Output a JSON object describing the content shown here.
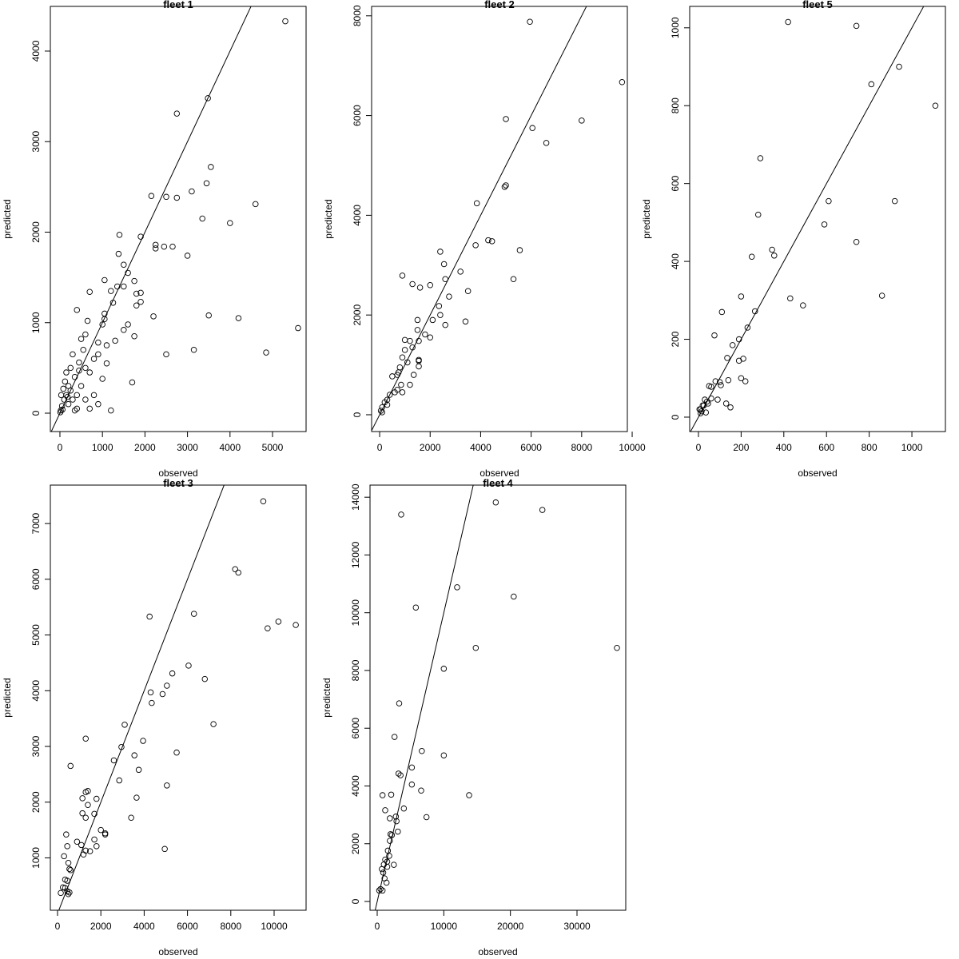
{
  "chart_data": [
    {
      "type": "scatter",
      "title": "fleet 1",
      "x_label": "observed",
      "y_label": "predicted",
      "identity_line": true,
      "color": "#000000",
      "x": [
        5300,
        2750,
        3480,
        3550,
        3450,
        3100,
        2500,
        2750,
        2150,
        3350,
        4600,
        4000,
        2250,
        2450,
        2650,
        2250,
        3000,
        1900,
        1400,
        1380,
        1500,
        1600,
        1350,
        1500,
        1750,
        1800,
        1900,
        1200,
        1050,
        700,
        400,
        1800,
        1900,
        2200,
        3500,
        4200,
        5600,
        4850,
        3150,
        2500,
        1700,
        1200,
        1050,
        1000,
        1300,
        1500,
        1600,
        1750,
        1100,
        900,
        800,
        600,
        650,
        500,
        300,
        450,
        600,
        700,
        800,
        900,
        700,
        1000,
        1100,
        350,
        200,
        150,
        100,
        50,
        20,
        250,
        300,
        400,
        500,
        150,
        80,
        250,
        200,
        600,
        400,
        120,
        350,
        30,
        10,
        60,
        180,
        900,
        1050,
        1250,
        550,
        450
      ],
      "y": [
        4330,
        3310,
        3480,
        2720,
        2540,
        2450,
        2390,
        2380,
        2400,
        2150,
        2310,
        2100,
        1860,
        1840,
        1840,
        1820,
        1740,
        1950,
        1970,
        1760,
        1640,
        1550,
        1400,
        1400,
        1460,
        1320,
        1330,
        1350,
        1470,
        1340,
        1140,
        1190,
        1230,
        1070,
        1080,
        1050,
        940,
        670,
        700,
        650,
        340,
        30,
        1100,
        980,
        800,
        920,
        980,
        850,
        750,
        650,
        600,
        870,
        1020,
        820,
        650,
        560,
        500,
        450,
        200,
        100,
        50,
        380,
        550,
        400,
        300,
        200,
        150,
        80,
        30,
        250,
        150,
        200,
        300,
        450,
        270,
        500,
        100,
        150,
        50,
        350,
        30,
        200,
        10,
        40,
        180,
        780,
        1040,
        1220,
        700,
        470
      ],
      "xlim": [
        -225,
        5789
      ],
      "ylim": [
        -203,
        4494
      ],
      "xticks": [
        0,
        1000,
        2000,
        3000,
        4000,
        5000
      ],
      "yticks": [
        0,
        1000,
        2000,
        3000,
        4000
      ]
    },
    {
      "type": "scatter",
      "title": "fleet 2",
      "x_label": "observed",
      "y_label": "predicted",
      "identity_line": true,
      "color": "#000000",
      "x": [
        5950,
        9600,
        5000,
        6050,
        8000,
        6600,
        4950,
        5000,
        3850,
        4300,
        4450,
        3800,
        5550,
        2400,
        2550,
        5300,
        2600,
        3500,
        3400,
        3200,
        2750,
        2350,
        2400,
        2000,
        1600,
        900,
        1300,
        2100,
        2600,
        2000,
        1800,
        1500,
        1550,
        1300,
        1000,
        1200,
        1500,
        1350,
        900,
        1100,
        1000,
        800,
        700,
        850,
        500,
        600,
        400,
        300,
        200,
        100,
        50,
        100,
        300,
        700,
        900,
        1550,
        1550,
        1550,
        1200,
        750
      ],
      "y": [
        7880,
        6670,
        5930,
        5750,
        5900,
        5450,
        4570,
        4600,
        4240,
        3500,
        3480,
        3400,
        3300,
        3270,
        3020,
        2720,
        2720,
        2480,
        1870,
        2870,
        2370,
        2180,
        2000,
        2600,
        2550,
        2790,
        2620,
        1900,
        1800,
        1550,
        1610,
        1700,
        1480,
        1350,
        1500,
        1480,
        1900,
        800,
        1150,
        1050,
        1300,
        950,
        800,
        600,
        770,
        450,
        400,
        300,
        250,
        150,
        80,
        50,
        200,
        500,
        450,
        1100,
        1080,
        970,
        600,
        850
      ],
      "xlim": [
        -318,
        9809
      ],
      "ylim": [
        -337,
        8189
      ],
      "xticks": [
        0,
        2000,
        4000,
        6000,
        8000,
        10000
      ],
      "yticks": [
        0,
        2000,
        4000,
        6000,
        8000
      ]
    },
    {
      "type": "scatter",
      "title": "fleet 5",
      "x_label": "observed",
      "y_label": "predicted",
      "identity_line": true,
      "color": "#000000",
      "x": [
        420,
        740,
        940,
        810,
        1110,
        290,
        610,
        920,
        280,
        590,
        740,
        345,
        355,
        250,
        200,
        860,
        430,
        490,
        265,
        110,
        230,
        75,
        160,
        190,
        210,
        190,
        135,
        200,
        220,
        140,
        100,
        80,
        105,
        50,
        60,
        90,
        130,
        150,
        40,
        30,
        20,
        10,
        15,
        25,
        45,
        35,
        60,
        5,
        10
      ],
      "y": [
        1015,
        1005,
        900,
        855,
        800,
        665,
        555,
        555,
        520,
        495,
        450,
        430,
        415,
        412,
        310,
        312,
        305,
        287,
        272,
        270,
        230,
        210,
        185,
        200,
        150,
        145,
        152,
        100,
        92,
        95,
        90,
        92,
        82,
        80,
        78,
        45,
        35,
        25,
        40,
        45,
        30,
        20,
        15,
        30,
        35,
        12,
        48,
        20,
        10
      ],
      "xlim": [
        -41,
        1157
      ],
      "ylim": [
        -37,
        1055
      ],
      "xticks": [
        0,
        200,
        400,
        600,
        800,
        1000
      ],
      "yticks": [
        0,
        200,
        400,
        600,
        800,
        1000
      ]
    },
    {
      "type": "scatter",
      "title": "fleet 3",
      "x_label": "observed",
      "y_label": "predicted",
      "identity_line": true,
      "color": "#000000",
      "x": [
        9500,
        8200,
        8350,
        10200,
        9700,
        11000,
        4250,
        6300,
        6050,
        6800,
        5300,
        5050,
        4850,
        4300,
        4350,
        7200,
        3100,
        3950,
        2950,
        5500,
        3550,
        2600,
        600,
        3750,
        2850,
        3650,
        5050,
        3400,
        1300,
        1400,
        1300,
        1150,
        1800,
        1400,
        1150,
        1700,
        1300,
        2000,
        2200,
        2200,
        1700,
        1800,
        900,
        1100,
        1300,
        1500,
        1200,
        4950,
        400,
        450,
        300,
        500,
        550,
        600,
        350,
        250,
        350,
        450,
        450,
        550,
        500,
        150
      ],
      "y": [
        7400,
        6180,
        6120,
        5240,
        5120,
        5180,
        5330,
        5380,
        4450,
        4210,
        4310,
        4090,
        3940,
        3970,
        3780,
        3400,
        3390,
        3100,
        2990,
        2890,
        2840,
        2750,
        2650,
        2580,
        2390,
        2080,
        2300,
        1720,
        3140,
        2200,
        2180,
        2070,
        2060,
        1950,
        1800,
        1790,
        1720,
        1500,
        1440,
        1420,
        1330,
        1210,
        1290,
        1230,
        1130,
        1120,
        1060,
        1160,
        1420,
        1210,
        1030,
        910,
        800,
        780,
        610,
        470,
        460,
        590,
        400,
        380,
        350,
        370
      ],
      "xlim": [
        -332,
        11476
      ],
      "ylim": [
        60,
        7690
      ],
      "xticks": [
        0,
        2000,
        4000,
        6000,
        8000,
        10000
      ],
      "yticks": [
        1000,
        2000,
        3000,
        4000,
        5000,
        6000,
        7000
      ]
    },
    {
      "type": "scatter",
      "title": "fleet 4",
      "x_label": "observed",
      "y_label": "predicted",
      "identity_line": true,
      "color": "#000000",
      "x": [
        36000,
        17800,
        24800,
        3600,
        12000,
        20500,
        5800,
        14800,
        10000,
        3300,
        2600,
        6700,
        10000,
        5200,
        3200,
        3500,
        5200,
        6600,
        13800,
        800,
        2100,
        4000,
        1200,
        7400,
        1900,
        2800,
        2900,
        2000,
        2200,
        3100,
        1900,
        2500,
        1800,
        1600,
        1200,
        1000,
        1500,
        700,
        900,
        1100,
        1400,
        500,
        300,
        800,
        1500
      ],
      "y": [
        8780,
        13820,
        13560,
        13400,
        10880,
        10560,
        10180,
        8780,
        8060,
        6860,
        5700,
        5210,
        5060,
        4640,
        4430,
        4370,
        4050,
        3840,
        3680,
        3680,
        3700,
        3220,
        3160,
        2920,
        2880,
        2940,
        2780,
        2330,
        2300,
        2420,
        2100,
        1270,
        1580,
        1760,
        1450,
        1280,
        1200,
        1120,
        1000,
        800,
        650,
        430,
        380,
        380,
        1380
      ],
      "xlim": [
        -1080,
        37320
      ],
      "ylim": [
        -304,
        14420
      ],
      "xticks": [
        0,
        10000,
        20000,
        30000
      ],
      "yticks": [
        0,
        2000,
        4000,
        6000,
        8000,
        10000,
        12000,
        14000
      ]
    }
  ]
}
